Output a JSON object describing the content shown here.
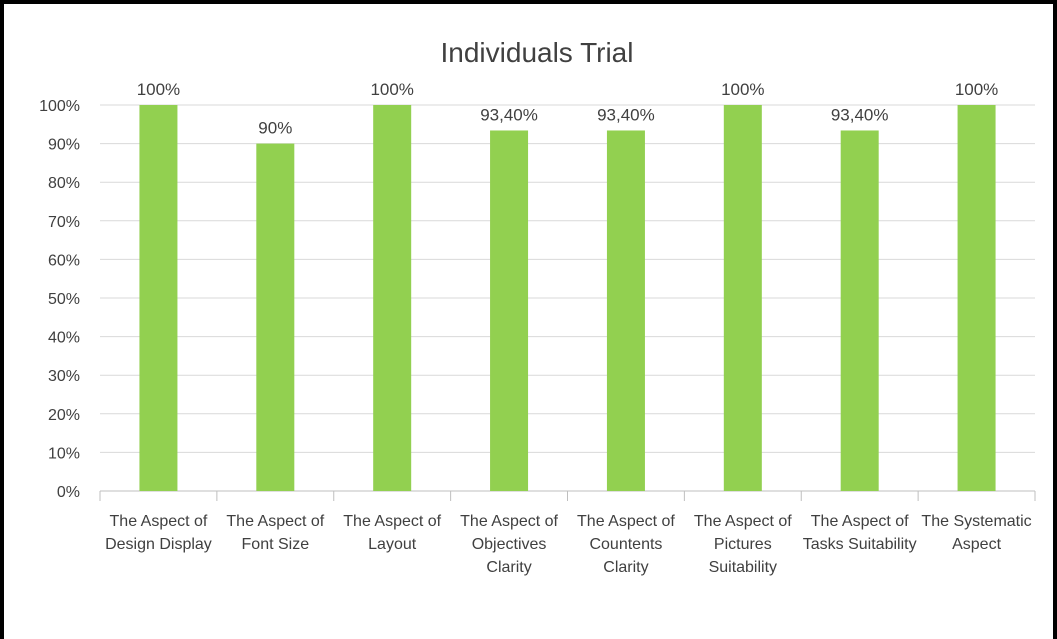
{
  "chart_data": {
    "type": "bar",
    "title": "Individuals Trial",
    "categories": [
      "The Aspect of Design Display",
      "The Aspect of Font Size",
      "The Aspect of Layout",
      "The Aspect of Objectives Clarity",
      "The Aspect of Countents Clarity",
      "The Aspect of Pictures Suitability",
      "The Aspect of Tasks Suitability",
      "The Systematic Aspect"
    ],
    "values": [
      100,
      90,
      100,
      93.4,
      93.4,
      100,
      93.4,
      100
    ],
    "value_labels": [
      "100%",
      "90%",
      "100%",
      "93,40%",
      "93,40%",
      "100%",
      "93,40%",
      "100%"
    ],
    "color": "#92d050",
    "ylim": [
      0,
      100
    ],
    "yticks": [
      {
        "value": 0,
        "label": "0%"
      },
      {
        "value": 10,
        "label": "10%"
      },
      {
        "value": 20,
        "label": "20%"
      },
      {
        "value": 30,
        "label": "30%"
      },
      {
        "value": 40,
        "label": "40%"
      },
      {
        "value": 50,
        "label": "50%"
      },
      {
        "value": 60,
        "label": "60%"
      },
      {
        "value": 70,
        "label": "70%"
      },
      {
        "value": 80,
        "label": "80%"
      },
      {
        "value": 90,
        "label": "90%"
      },
      {
        "value": 100,
        "label": "100%"
      }
    ],
    "grid": true
  }
}
